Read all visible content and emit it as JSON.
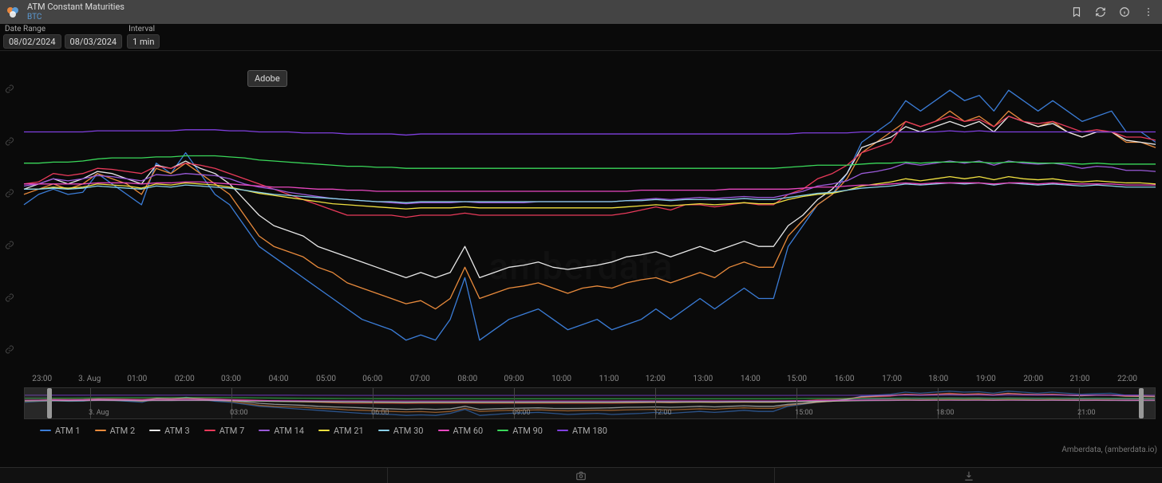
{
  "header": {
    "title": "ATM Constant Maturities",
    "subtitle": "BTC"
  },
  "controls": {
    "date_range_label": "Date Range",
    "date_from": "08/02/2024",
    "date_to": "08/03/2024",
    "interval_label": "Interval",
    "interval_value": "1 min"
  },
  "tooltip_badge": "Adobe",
  "watermark": "amberdata",
  "credit": "Amberdata, (amberdata.io)",
  "chart": {
    "type": "line",
    "background_color": "#0a0a0a",
    "grid_color": "#1a1a1a",
    "ylim": [
      36,
      66
    ],
    "y_gridlines": [
      38,
      43,
      48,
      53,
      58,
      63
    ],
    "x_ticks": [
      {
        "pos": 0.016,
        "label": "23:00"
      },
      {
        "pos": 0.058,
        "label": "3. Aug"
      },
      {
        "pos": 0.1,
        "label": "01:00"
      },
      {
        "pos": 0.142,
        "label": "02:00"
      },
      {
        "pos": 0.183,
        "label": "03:00"
      },
      {
        "pos": 0.225,
        "label": "04:00"
      },
      {
        "pos": 0.267,
        "label": "05:00"
      },
      {
        "pos": 0.308,
        "label": "06:00"
      },
      {
        "pos": 0.35,
        "label": "07:00"
      },
      {
        "pos": 0.392,
        "label": "08:00"
      },
      {
        "pos": 0.433,
        "label": "09:00"
      },
      {
        "pos": 0.475,
        "label": "10:00"
      },
      {
        "pos": 0.517,
        "label": "11:00"
      },
      {
        "pos": 0.558,
        "label": "12:00"
      },
      {
        "pos": 0.6,
        "label": "13:00"
      },
      {
        "pos": 0.642,
        "label": "14:00"
      },
      {
        "pos": 0.683,
        "label": "15:00"
      },
      {
        "pos": 0.725,
        "label": "16:00"
      },
      {
        "pos": 0.767,
        "label": "17:00"
      },
      {
        "pos": 0.808,
        "label": "18:00"
      },
      {
        "pos": 0.85,
        "label": "19:00"
      },
      {
        "pos": 0.892,
        "label": "20:00"
      },
      {
        "pos": 0.933,
        "label": "21:00"
      },
      {
        "pos": 0.975,
        "label": "22:00"
      }
    ],
    "navigator_ticks": [
      {
        "pos": 0.058,
        "label": "3. Aug"
      },
      {
        "pos": 0.183,
        "label": "03:00"
      },
      {
        "pos": 0.308,
        "label": "06:00"
      },
      {
        "pos": 0.433,
        "label": "09:00"
      },
      {
        "pos": 0.558,
        "label": "12:00"
      },
      {
        "pos": 0.683,
        "label": "15:00"
      },
      {
        "pos": 0.808,
        "label": "18:00"
      },
      {
        "pos": 0.933,
        "label": "21:00"
      }
    ],
    "series": [
      {
        "name": "ATM 1",
        "color": "#3b7dd8",
        "values": [
          52,
          53,
          53.5,
          53,
          53.2,
          55,
          54,
          53,
          52,
          56,
          55,
          57,
          55,
          53,
          52,
          50,
          48,
          47,
          46,
          45,
          44,
          43,
          42,
          41,
          40.5,
          40,
          39,
          39.5,
          39,
          41,
          45,
          39,
          40,
          41,
          41.5,
          42,
          41,
          40,
          40.5,
          41,
          40,
          40.5,
          41,
          42,
          41,
          42,
          43,
          42,
          43,
          44,
          43,
          43,
          48,
          50,
          52,
          53,
          55,
          58,
          59,
          60,
          62,
          61,
          62,
          63,
          62,
          62.5,
          61,
          63,
          62,
          61,
          62,
          61,
          60,
          60.5,
          61,
          59,
          59,
          58
        ]
      },
      {
        "name": "ATM 2",
        "color": "#e88a3c",
        "values": [
          53,
          53.5,
          54,
          53.5,
          54,
          55,
          54.5,
          54,
          53,
          55.5,
          55,
          56,
          55,
          54,
          53,
          51,
          49,
          48,
          47.5,
          47,
          46,
          45.5,
          44.5,
          44,
          43.5,
          43,
          42.5,
          42.8,
          42,
          43,
          46,
          43,
          43.5,
          44,
          44.2,
          44.5,
          44,
          43.5,
          44,
          44.2,
          44,
          44.5,
          44.8,
          45,
          44.5,
          45,
          45.5,
          45,
          46,
          46.5,
          46,
          46,
          49,
          50.5,
          52,
          53,
          54.5,
          57,
          58,
          59,
          60,
          59.5,
          60,
          61,
          60,
          60.5,
          59.5,
          61,
          60,
          59.5,
          60,
          59,
          58.5,
          59,
          59,
          58,
          58,
          57.5
        ]
      },
      {
        "name": "ATM 3",
        "color": "#e8e8e8",
        "values": [
          53.5,
          54,
          54.5,
          54,
          54.5,
          55.2,
          55,
          54.5,
          54,
          55.8,
          55.5,
          56.2,
          55.5,
          55,
          54,
          52.5,
          51,
          50,
          49.5,
          49,
          48,
          47.5,
          47,
          46.5,
          46,
          45.5,
          45,
          45.5,
          45,
          45.5,
          48,
          45,
          45.5,
          46,
          46.2,
          46.5,
          46,
          45.8,
          46,
          46.2,
          46.5,
          47,
          47.2,
          47.5,
          47,
          47.5,
          48,
          47.5,
          48,
          48.5,
          48,
          48,
          50,
          51,
          52.5,
          53.5,
          55,
          57.5,
          58,
          58.5,
          59.5,
          59,
          59.5,
          60,
          59.5,
          60,
          59,
          60.5,
          60,
          59.5,
          59.8,
          59,
          58.5,
          59,
          59,
          58.2,
          58,
          57.8
        ]
      },
      {
        "name": "ATM 7",
        "color": "#e83a5a",
        "values": [
          54,
          54.2,
          55,
          54.8,
          55,
          55.5,
          55.4,
          55.2,
          55,
          55.7,
          55.5,
          56,
          55.8,
          55.5,
          55,
          54.5,
          54,
          53.5,
          53,
          52.5,
          52,
          51.5,
          51,
          51,
          51,
          51,
          50.8,
          51,
          51,
          51,
          51.2,
          51,
          51,
          51,
          51,
          51,
          51,
          51,
          51,
          51,
          51,
          51.2,
          51.5,
          51.8,
          51.5,
          52,
          52,
          51.8,
          52,
          52.2,
          52,
          52,
          53,
          53.5,
          54.5,
          55,
          55.8,
          57,
          57.5,
          58,
          60,
          59.5,
          60,
          60.5,
          60,
          60.2,
          59.5,
          60.5,
          60,
          59.8,
          60,
          59.5,
          59,
          59.2,
          59,
          58.5,
          58.5,
          58.2
        ]
      },
      {
        "name": "ATM 14",
        "color": "#9a5ad8",
        "values": [
          53.8,
          54,
          54.5,
          54.3,
          54.5,
          54.8,
          54.7,
          54.5,
          54.3,
          54.9,
          54.8,
          55,
          54.9,
          54.8,
          54.5,
          54,
          53.7,
          53.5,
          53.2,
          53,
          52.8,
          52.6,
          52.5,
          52.4,
          52.3,
          52.2,
          52.1,
          52.2,
          52.2,
          52.2,
          52.3,
          52.2,
          52.2,
          52.2,
          52.2,
          52.3,
          52.3,
          52.3,
          52.3,
          52.3,
          52.3,
          52.4,
          52.5,
          52.6,
          52.5,
          52.6,
          52.7,
          52.6,
          52.7,
          52.8,
          52.7,
          52.7,
          53,
          53.3,
          53.8,
          54,
          54.3,
          55,
          55.2,
          55.5,
          56,
          55.8,
          56,
          56.2,
          56,
          56.2,
          55.8,
          56.2,
          56,
          55.9,
          56,
          55.8,
          55.5,
          55.7,
          55.6,
          55.3,
          55.3,
          55.2
        ]
      },
      {
        "name": "ATM 21",
        "color": "#f0e040",
        "values": [
          53.5,
          53.5,
          53.7,
          53.6,
          53.7,
          54,
          53.9,
          53.8,
          53.6,
          54,
          53.9,
          54.1,
          54,
          53.9,
          53.7,
          53.4,
          53.1,
          52.9,
          52.7,
          52.5,
          52.3,
          52.1,
          52,
          51.9,
          51.8,
          51.7,
          51.6,
          51.7,
          51.7,
          51.7,
          51.8,
          51.7,
          51.7,
          51.7,
          51.7,
          51.7,
          51.7,
          51.7,
          51.7,
          51.7,
          51.7,
          51.8,
          51.9,
          52,
          51.9,
          52,
          52.1,
          52,
          52.1,
          52.2,
          52.1,
          52.1,
          52.5,
          52.8,
          53,
          53.1,
          53.4,
          53.8,
          54,
          54.2,
          54.5,
          54.3,
          54.5,
          54.7,
          54.5,
          54.7,
          54.4,
          54.7,
          54.5,
          54.4,
          54.5,
          54.3,
          54.2,
          54.3,
          54.2,
          54.1,
          54.1,
          54
        ]
      },
      {
        "name": "ATM 30",
        "color": "#8ad0e8",
        "values": [
          53.5,
          53.5,
          53.6,
          53.5,
          53.6,
          53.8,
          53.7,
          53.6,
          53.5,
          53.8,
          53.7,
          53.9,
          53.8,
          53.7,
          53.6,
          53.4,
          53.2,
          53,
          52.9,
          52.8,
          52.7,
          52.6,
          52.5,
          52.4,
          52.3,
          52.3,
          52.2,
          52.3,
          52.3,
          52.3,
          52.3,
          52.3,
          52.3,
          52.3,
          52.3,
          52.3,
          52.3,
          52.3,
          52.3,
          52.3,
          52.3,
          52.4,
          52.4,
          52.5,
          52.4,
          52.5,
          52.5,
          52.5,
          52.5,
          52.6,
          52.5,
          52.5,
          52.7,
          52.9,
          53.1,
          53.2,
          53.4,
          53.6,
          53.7,
          53.8,
          54,
          53.9,
          54,
          54.1,
          54,
          54.1,
          53.9,
          54.1,
          54,
          53.9,
          54,
          53.9,
          53.8,
          53.9,
          53.8,
          53.7,
          53.7,
          53.7
        ]
      },
      {
        "name": "ATM 60",
        "color": "#e848c0",
        "values": [
          54,
          54,
          54,
          54,
          54,
          54.1,
          54.1,
          54.1,
          54,
          54.1,
          54.1,
          54.2,
          54.2,
          54.1,
          54,
          53.9,
          53.8,
          53.7,
          53.7,
          53.6,
          53.5,
          53.5,
          53.4,
          53.4,
          53.3,
          53.3,
          53.3,
          53.3,
          53.3,
          53.3,
          53.3,
          53.3,
          53.3,
          53.3,
          53.3,
          53.3,
          53.3,
          53.3,
          53.3,
          53.3,
          53.3,
          53.3,
          53.4,
          53.4,
          53.4,
          53.4,
          53.4,
          53.4,
          53.5,
          53.5,
          53.5,
          53.5,
          53.5,
          53.6,
          53.7,
          53.7,
          53.8,
          53.9,
          53.9,
          54,
          54.1,
          54,
          54.1,
          54.1,
          54.1,
          54.1,
          54,
          54.1,
          54.1,
          54,
          54.1,
          54,
          54,
          54,
          54,
          53.9,
          53.9,
          53.9
        ]
      },
      {
        "name": "ATM 90",
        "color": "#3ad85a",
        "values": [
          56,
          56,
          56.1,
          56.1,
          56.2,
          56.4,
          56.5,
          56.5,
          56.5,
          56.6,
          56.6,
          56.7,
          56.7,
          56.7,
          56.6,
          56.5,
          56.3,
          56.2,
          56.1,
          56,
          55.9,
          55.8,
          55.7,
          55.7,
          55.6,
          55.6,
          55.5,
          55.5,
          55.5,
          55.5,
          55.5,
          55.5,
          55.5,
          55.5,
          55.5,
          55.5,
          55.5,
          55.5,
          55.5,
          55.5,
          55.5,
          55.5,
          55.5,
          55.5,
          55.5,
          55.5,
          55.5,
          55.5,
          55.5,
          55.5,
          55.5,
          55.5,
          55.6,
          55.7,
          55.8,
          55.8,
          55.8,
          55.9,
          56,
          56,
          56.1,
          56,
          56.1,
          56.1,
          56.1,
          56.1,
          56,
          56.1,
          56.1,
          56,
          56,
          56,
          55.9,
          56,
          55.9,
          55.9,
          55.9,
          55.9
        ]
      },
      {
        "name": "ATM 180",
        "color": "#8040e0",
        "values": [
          59,
          59,
          59,
          59,
          59,
          59.1,
          59.1,
          59.1,
          59.1,
          59.1,
          59.1,
          59.2,
          59.2,
          59.2,
          59.1,
          59.1,
          59,
          59,
          59,
          58.9,
          58.9,
          58.9,
          58.8,
          58.8,
          58.8,
          58.8,
          58.7,
          58.8,
          58.8,
          58.8,
          58.8,
          58.8,
          58.8,
          58.8,
          58.8,
          58.8,
          58.8,
          58.8,
          58.8,
          58.8,
          58.8,
          58.8,
          58.8,
          58.8,
          58.8,
          58.8,
          58.8,
          58.8,
          58.8,
          58.8,
          58.8,
          58.8,
          58.8,
          58.9,
          58.9,
          58.9,
          58.9,
          59,
          59,
          59,
          59,
          59,
          59,
          59.1,
          59,
          59.1,
          59,
          59,
          59,
          59,
          59,
          59,
          59,
          59,
          59,
          59,
          59,
          59
        ]
      }
    ]
  }
}
